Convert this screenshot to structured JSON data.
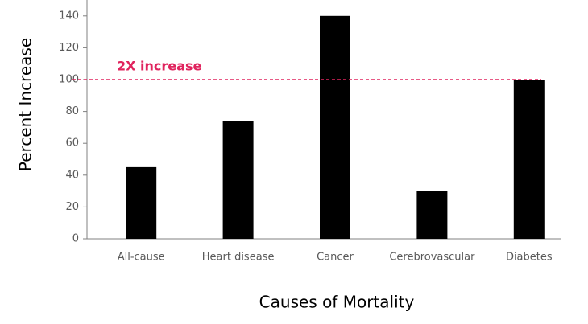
{
  "chart_data": {
    "type": "bar",
    "x_label": "Causes of Mortality",
    "y_label": "Percent Increase",
    "categories": [
      "All-cause",
      "Heart disease",
      "Cancer",
      "Cerebrovascular",
      "Diabetes"
    ],
    "values": [
      45,
      74,
      140,
      30,
      100
    ],
    "color": "#000000",
    "ylim": [
      0,
      150
    ],
    "yticks": [
      0,
      20,
      40,
      60,
      80,
      100,
      120,
      140
    ],
    "grid": false,
    "reference_line": {
      "value": 100,
      "label": "2X increase",
      "color": "#e0245e"
    }
  }
}
